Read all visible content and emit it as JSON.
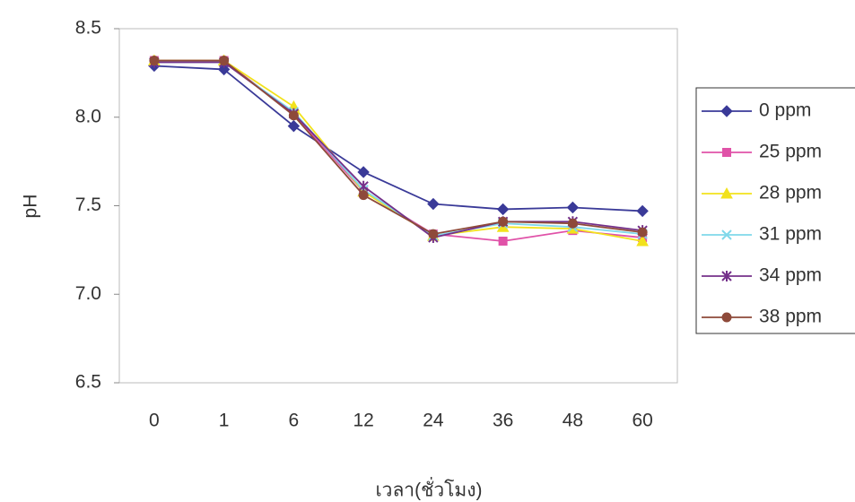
{
  "chart_data": {
    "type": "line",
    "x_label": "เวลา(ชั่วโมง)",
    "y_label": "pH",
    "categories": [
      "0",
      "1",
      "6",
      "12",
      "24",
      "36",
      "48",
      "60"
    ],
    "ylim": [
      6.5,
      8.5
    ],
    "yticks": [
      6.5,
      {
        "value": 7,
        "label": "7.0"
      },
      7.5,
      {
        "value": 8,
        "label": "8.0"
      },
      8.5
    ],
    "series": [
      {
        "name": "0 ppm",
        "color": "#3a3a98",
        "marker": "diamond",
        "values": [
          8.29,
          8.27,
          7.95,
          7.69,
          7.51,
          7.48,
          7.49,
          7.47
        ]
      },
      {
        "name": "25 ppm",
        "color": "#e052a8",
        "marker": "square",
        "values": [
          8.32,
          8.32,
          8.02,
          7.58,
          7.34,
          7.3,
          7.36,
          7.32
        ]
      },
      {
        "name": "28 ppm",
        "color": "#f2e21c",
        "marker": "triangle",
        "values": [
          8.32,
          8.32,
          8.06,
          7.58,
          7.33,
          7.38,
          7.37,
          7.3
        ]
      },
      {
        "name": "31 ppm",
        "color": "#7fd8ea",
        "marker": "x",
        "values": [
          8.31,
          8.31,
          8.03,
          7.59,
          7.33,
          7.4,
          7.38,
          7.34
        ]
      },
      {
        "name": "34 ppm",
        "color": "#74308a",
        "marker": "star",
        "values": [
          8.31,
          8.31,
          8.02,
          7.61,
          7.32,
          7.41,
          7.41,
          7.36
        ]
      },
      {
        "name": "38 ppm",
        "color": "#8e4a3a",
        "marker": "circle",
        "values": [
          8.32,
          8.32,
          8.01,
          7.56,
          7.34,
          7.41,
          7.4,
          7.35
        ]
      }
    ]
  }
}
